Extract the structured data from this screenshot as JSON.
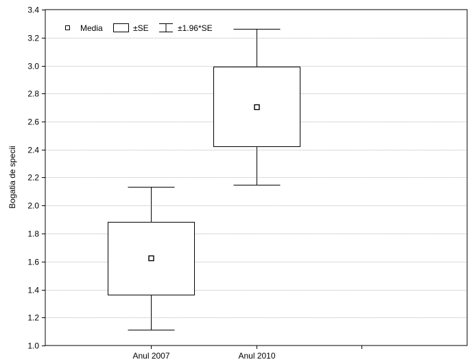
{
  "chart_data": {
    "type": "box",
    "title": "",
    "xlabel": "",
    "ylabel": "Bogatia de specii",
    "ylim": [
      1.0,
      3.4
    ],
    "yticks": [
      1.0,
      1.2,
      1.4,
      1.6,
      1.8,
      2.0,
      2.2,
      2.4,
      2.6,
      2.8,
      3.0,
      3.2,
      3.4
    ],
    "grid": true,
    "legend_position": "top-left",
    "legend": {
      "mean": "Media",
      "box": "±SE",
      "whisker": "±1.96*SE"
    },
    "categories": [
      "Anul 2007",
      "Anul 2010"
    ],
    "groups": [
      {
        "category": "Anul 2007",
        "mean": 1.625,
        "se_low": 1.365,
        "se_high": 1.885,
        "ci_low": 1.115,
        "ci_high": 2.135
      },
      {
        "category": "Anul 2010",
        "mean": 2.705,
        "se_low": 2.425,
        "se_high": 2.995,
        "ci_low": 2.15,
        "ci_high": 3.265
      }
    ]
  }
}
